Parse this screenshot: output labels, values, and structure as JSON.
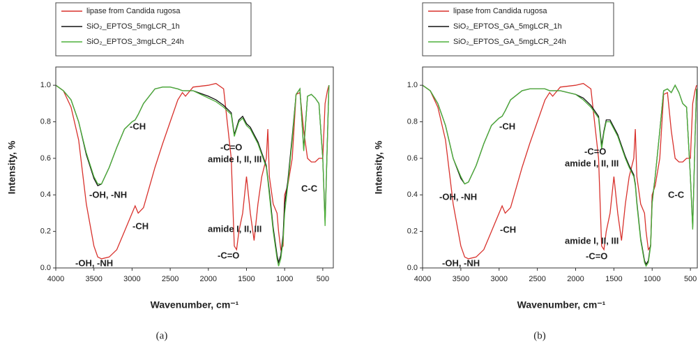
{
  "chart_data": [
    {
      "type": "line",
      "caption": "(a)",
      "x_label": "Wavenumber, cm⁻¹",
      "y_label": "Intensity, %",
      "xlim": [
        4000,
        362
      ],
      "xticks": [
        4000,
        3500,
        3000,
        2500,
        2000,
        1500,
        1000,
        500
      ],
      "ylim": [
        0,
        1.1
      ],
      "yticks": [
        {
          "value": 0,
          "label": "0.0"
        },
        0.2,
        0.4,
        0.6,
        0.8,
        {
          "value": 1,
          "label": "1.0"
        }
      ],
      "x": [
        4000,
        3900,
        3800,
        3700,
        3600,
        3500,
        3450,
        3400,
        3300,
        3200,
        3100,
        3000,
        2960,
        2920,
        2850,
        2700,
        2600,
        2500,
        2400,
        2340,
        2300,
        2200,
        2000,
        1900,
        1800,
        1700,
        1660,
        1630,
        1600,
        1550,
        1500,
        1450,
        1400,
        1350,
        1300,
        1240,
        1220,
        1200,
        1150,
        1100,
        1080,
        1050,
        1020,
        1000,
        960,
        900,
        850,
        800,
        750,
        700,
        650,
        600,
        550,
        500,
        470,
        440,
        420
      ],
      "series": [
        {
          "name": "lipase from Candida rugosa",
          "color": "#d8312c",
          "values": [
            1.0,
            0.97,
            0.88,
            0.7,
            0.35,
            0.12,
            0.06,
            0.05,
            0.06,
            0.1,
            0.2,
            0.3,
            0.34,
            0.3,
            0.33,
            0.55,
            0.68,
            0.8,
            0.92,
            0.96,
            0.94,
            0.99,
            1.0,
            1.01,
            0.98,
            0.6,
            0.12,
            0.1,
            0.2,
            0.3,
            0.5,
            0.3,
            0.15,
            0.35,
            0.5,
            0.6,
            0.76,
            0.5,
            0.35,
            0.3,
            0.2,
            0.1,
            0.12,
            0.4,
            0.45,
            0.6,
            0.95,
            0.96,
            0.75,
            0.6,
            0.58,
            0.58,
            0.6,
            0.6,
            0.9,
            0.97,
            1.0
          ]
        },
        {
          "name": "SiO₂_EPTOS_5mgLCR_1h",
          "color": "#111111",
          "values": [
            1.0,
            0.97,
            0.92,
            0.8,
            0.62,
            0.49,
            0.45,
            0.46,
            0.55,
            0.66,
            0.76,
            0.8,
            0.81,
            0.84,
            0.9,
            0.98,
            0.99,
            0.99,
            0.98,
            0.97,
            0.97,
            0.97,
            0.94,
            0.92,
            0.89,
            0.85,
            0.73,
            0.77,
            0.81,
            0.83,
            0.79,
            0.77,
            0.73,
            0.69,
            0.63,
            0.56,
            0.49,
            0.42,
            0.22,
            0.07,
            0.03,
            0.07,
            0.18,
            0.35,
            0.47,
            0.72,
            0.95,
            0.98,
            0.65,
            0.94,
            0.95,
            0.93,
            0.9,
            0.6,
            0.25,
            0.7,
            1.0
          ]
        },
        {
          "name": "SiO₂_EPTOS_3mgLCR_24h",
          "color": "#4db03a",
          "values": [
            1.0,
            0.97,
            0.92,
            0.8,
            0.63,
            0.5,
            0.46,
            0.46,
            0.55,
            0.66,
            0.76,
            0.8,
            0.81,
            0.84,
            0.9,
            0.98,
            0.99,
            0.99,
            0.98,
            0.97,
            0.97,
            0.97,
            0.93,
            0.91,
            0.88,
            0.84,
            0.72,
            0.76,
            0.8,
            0.82,
            0.78,
            0.76,
            0.72,
            0.68,
            0.62,
            0.55,
            0.48,
            0.4,
            0.2,
            0.05,
            0.01,
            0.05,
            0.15,
            0.3,
            0.45,
            0.7,
            0.95,
            0.98,
            0.64,
            0.94,
            0.95,
            0.93,
            0.9,
            0.6,
            0.23,
            0.7,
            1.0
          ]
        }
      ],
      "annotations": [
        "-OH, -NH",
        "-CH",
        "-OH, -NH",
        "-CH",
        "-C=O",
        "amide I, II, III",
        "C-C",
        "amide I, II, III",
        "-C=O"
      ]
    },
    {
      "type": "line",
      "caption": "(b)",
      "x_label": "Wavenumber, cm⁻¹",
      "y_label": "Intensity, %",
      "xlim": [
        4000,
        410
      ],
      "xticks": [
        4000,
        3500,
        3000,
        2500,
        2000,
        1500,
        1000,
        500
      ],
      "ylim": [
        0,
        1.1
      ],
      "yticks": [
        {
          "value": 0,
          "label": "0.0"
        },
        0.2,
        0.4,
        0.6,
        0.8,
        {
          "value": 1,
          "label": "1.0"
        }
      ],
      "x": [
        4000,
        3900,
        3800,
        3700,
        3600,
        3500,
        3450,
        3400,
        3300,
        3200,
        3100,
        3000,
        2960,
        2920,
        2850,
        2700,
        2600,
        2500,
        2400,
        2340,
        2300,
        2200,
        2000,
        1900,
        1800,
        1700,
        1660,
        1630,
        1600,
        1550,
        1500,
        1450,
        1400,
        1350,
        1300,
        1240,
        1220,
        1200,
        1150,
        1100,
        1080,
        1050,
        1020,
        1000,
        960,
        900,
        850,
        800,
        750,
        700,
        650,
        600,
        550,
        500,
        470,
        440,
        420
      ],
      "series": [
        {
          "name": "lipase from Candida rugosa",
          "color": "#d8312c",
          "values": [
            1.0,
            0.97,
            0.88,
            0.7,
            0.35,
            0.12,
            0.06,
            0.05,
            0.06,
            0.1,
            0.2,
            0.3,
            0.34,
            0.3,
            0.33,
            0.55,
            0.68,
            0.8,
            0.92,
            0.96,
            0.94,
            0.99,
            1.0,
            1.01,
            0.98,
            0.6,
            0.12,
            0.1,
            0.2,
            0.3,
            0.5,
            0.3,
            0.15,
            0.35,
            0.5,
            0.6,
            0.76,
            0.5,
            0.35,
            0.3,
            0.2,
            0.1,
            0.12,
            0.4,
            0.45,
            0.6,
            0.95,
            0.96,
            0.75,
            0.6,
            0.58,
            0.58,
            0.6,
            0.6,
            0.9,
            0.97,
            1.0
          ]
        },
        {
          "name": "SiO₂_EPTOS_GA_5mgLCR_1h",
          "color": "#111111",
          "values": [
            1.0,
            0.97,
            0.9,
            0.78,
            0.6,
            0.49,
            0.46,
            0.47,
            0.56,
            0.68,
            0.78,
            0.82,
            0.83,
            0.86,
            0.92,
            0.97,
            0.98,
            0.98,
            0.98,
            0.97,
            0.97,
            0.97,
            0.95,
            0.93,
            0.89,
            0.83,
            0.67,
            0.75,
            0.81,
            0.81,
            0.77,
            0.73,
            0.67,
            0.61,
            0.56,
            0.51,
            0.46,
            0.36,
            0.16,
            0.04,
            0.02,
            0.04,
            0.13,
            0.36,
            0.5,
            0.75,
            0.97,
            0.98,
            0.96,
            1.0,
            0.96,
            0.9,
            0.88,
            0.5,
            0.22,
            0.7,
            0.98
          ]
        },
        {
          "name": "SiO₂_EPTOS_GA_5mgLCR_24h",
          "color": "#4db03a",
          "values": [
            1.0,
            0.97,
            0.9,
            0.78,
            0.6,
            0.5,
            0.46,
            0.47,
            0.56,
            0.68,
            0.78,
            0.82,
            0.83,
            0.86,
            0.92,
            0.97,
            0.98,
            0.98,
            0.98,
            0.97,
            0.97,
            0.97,
            0.95,
            0.92,
            0.88,
            0.82,
            0.65,
            0.74,
            0.8,
            0.8,
            0.76,
            0.72,
            0.66,
            0.6,
            0.55,
            0.5,
            0.45,
            0.35,
            0.15,
            0.03,
            0.01,
            0.03,
            0.12,
            0.35,
            0.5,
            0.75,
            0.97,
            0.98,
            0.96,
            1.0,
            0.96,
            0.9,
            0.88,
            0.5,
            0.21,
            0.7,
            0.98
          ]
        }
      ],
      "annotations": [
        "-CH",
        "-C=O",
        "amide I, II, III",
        "C-C",
        "-OH, -NH",
        "-CH",
        "amide I, II, III",
        "-C=O",
        "-OH, -NH"
      ]
    }
  ]
}
